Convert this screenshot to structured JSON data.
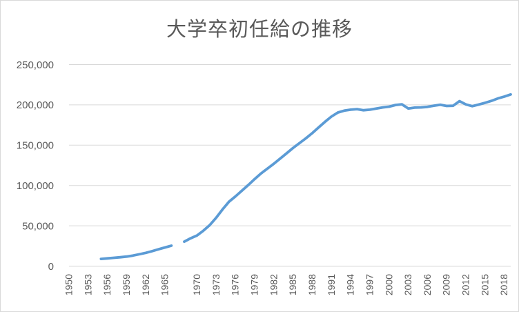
{
  "chart": {
    "title": "大学卒初任給の推移"
  },
  "colors": {
    "line": "#5B9BD5",
    "grid": "#D9D9D9",
    "axis_line": "#D2D2D2",
    "text": "#595959",
    "border": "#D9D9D9",
    "background": "#FFFFFF"
  },
  "chart_data": {
    "type": "line",
    "title": "大学卒初任給の推移",
    "xlabel": "",
    "ylabel": "",
    "legend": "none",
    "grid": "horizontal",
    "x_range": [
      1950,
      2019
    ],
    "ylim": [
      0,
      250000
    ],
    "y_ticks": [
      0,
      50000,
      100000,
      150000,
      200000,
      250000
    ],
    "y_tick_labels": [
      "0",
      "50,000",
      "100,000",
      "150,000",
      "200,000",
      "250,000"
    ],
    "x_ticks": [
      1950,
      1953,
      1956,
      1959,
      1962,
      1965,
      1970,
      1973,
      1976,
      1979,
      1982,
      1985,
      1988,
      1991,
      1994,
      1997,
      2000,
      2003,
      2006,
      2009,
      2012,
      2015,
      2018
    ],
    "x_tick_labels": [
      "1950",
      "1953",
      "1956",
      "1959",
      "1962",
      "1965",
      "1970",
      "1973",
      "1976",
      "1979",
      "1982",
      "1985",
      "1988",
      "1991",
      "1994",
      "1997",
      "2000",
      "2003",
      "2006",
      "2009",
      "2012",
      "2015",
      "2018"
    ],
    "missing_years": [
      1967
    ],
    "series": [
      {
        "name": "大学卒初任給",
        "color": "#5B9BD5",
        "points": [
          [
            1955,
            8900
          ],
          [
            1956,
            9600
          ],
          [
            1957,
            10300
          ],
          [
            1958,
            11000
          ],
          [
            1959,
            11800
          ],
          [
            1960,
            13100
          ],
          [
            1961,
            14700
          ],
          [
            1962,
            16400
          ],
          [
            1963,
            18600
          ],
          [
            1964,
            20900
          ],
          [
            1965,
            23100
          ],
          [
            1966,
            25300
          ],
          [
            1968,
            30300
          ],
          [
            1969,
            34500
          ],
          [
            1970,
            38000
          ],
          [
            1971,
            44000
          ],
          [
            1972,
            51000
          ],
          [
            1973,
            60000
          ],
          [
            1974,
            70500
          ],
          [
            1975,
            80000
          ],
          [
            1976,
            86500
          ],
          [
            1977,
            93500
          ],
          [
            1978,
            100500
          ],
          [
            1979,
            108000
          ],
          [
            1980,
            115000
          ],
          [
            1981,
            121000
          ],
          [
            1982,
            127000
          ],
          [
            1983,
            133500
          ],
          [
            1984,
            140000
          ],
          [
            1985,
            146500
          ],
          [
            1986,
            152500
          ],
          [
            1987,
            158500
          ],
          [
            1988,
            165000
          ],
          [
            1989,
            172000
          ],
          [
            1990,
            179000
          ],
          [
            1991,
            185500
          ],
          [
            1992,
            190500
          ],
          [
            1993,
            192800
          ],
          [
            1994,
            194000
          ],
          [
            1995,
            194700
          ],
          [
            1996,
            193300
          ],
          [
            1997,
            194000
          ],
          [
            1998,
            195500
          ],
          [
            1999,
            196800
          ],
          [
            2000,
            197800
          ],
          [
            2001,
            199800
          ],
          [
            2002,
            200700
          ],
          [
            2003,
            195500
          ],
          [
            2004,
            196600
          ],
          [
            2005,
            196800
          ],
          [
            2006,
            197500
          ],
          [
            2007,
            199000
          ],
          [
            2008,
            200100
          ],
          [
            2009,
            198600
          ],
          [
            2010,
            198900
          ],
          [
            2011,
            204500
          ],
          [
            2012,
            200500
          ],
          [
            2013,
            198400
          ],
          [
            2014,
            200300
          ],
          [
            2015,
            202600
          ],
          [
            2016,
            205000
          ],
          [
            2017,
            208000
          ],
          [
            2018,
            210300
          ],
          [
            2019,
            212900
          ]
        ]
      }
    ]
  }
}
